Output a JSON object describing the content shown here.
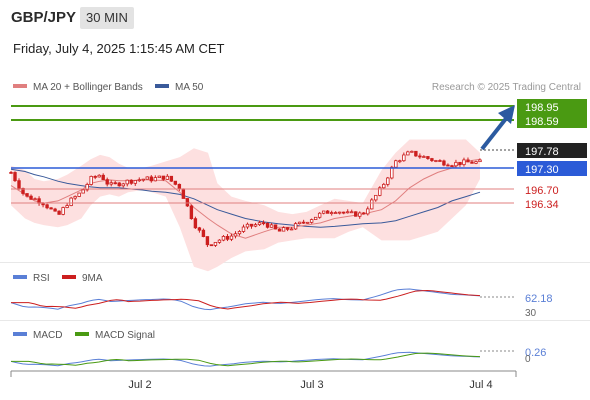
{
  "header": {
    "pair": "GBP/JPY",
    "timeframe": "30 MIN",
    "datetime": "Friday, July 4, 2025 1:15:45 AM CET"
  },
  "legend": {
    "ma20": "MA 20 + Bollinger Bands",
    "ma50": "MA 50",
    "credit": "Research © 2025 Trading Central"
  },
  "colors": {
    "candle": "#cc1f1f",
    "ma20": "#e07f7f",
    "bands_fill": "#fde0e0",
    "ma50": "#3a5a9a",
    "resistance": "#4a9a12",
    "pivot": "#2b5bd7",
    "support": "#cc1f1f",
    "arrow": "#2b5aa0",
    "rsi": "#5a7fd6",
    "rsi_ma": "#cc1f1f",
    "macd": "#5a7fd6",
    "macd_signal": "#4a9a12"
  },
  "levels": {
    "r2": {
      "label": "198.95",
      "value": 198.95
    },
    "r1": {
      "label": "198.59",
      "value": 198.59
    },
    "last": {
      "label": "197.78",
      "value": 197.78
    },
    "pivot": {
      "label": "197.30",
      "value": 197.3
    },
    "s1": {
      "label": "196.70",
      "value": 196.7
    },
    "s2": {
      "label": "196.34",
      "value": 196.34
    }
  },
  "rsi": {
    "title": "RSI",
    "ma_title": "9MA",
    "value": "62.18",
    "partial_label": "30"
  },
  "macd": {
    "title": "MACD",
    "signal_title": "MACD Signal",
    "value": "0.26",
    "partial_label": "0"
  },
  "xaxis": {
    "ticks": [
      "Jul 2",
      "Jul 3",
      "Jul 4"
    ]
  },
  "chart_data": {
    "type": "candlestick",
    "title": "GBP/JPY",
    "ylim": [
      195.6,
      199.2
    ],
    "x": [
      0,
      3,
      5,
      7,
      10,
      12,
      15,
      17,
      19,
      21,
      23,
      25,
      28,
      30,
      33,
      36,
      39,
      42,
      44,
      47,
      50,
      54,
      57,
      60,
      63,
      66,
      69,
      72,
      75,
      79,
      82,
      85,
      88,
      91,
      94,
      97,
      100
    ],
    "close": [
      197.55,
      197.0,
      196.95,
      196.85,
      196.55,
      196.85,
      197.1,
      197.4,
      197.5,
      197.25,
      197.3,
      197.35,
      197.4,
      197.4,
      197.45,
      197.2,
      196.4,
      195.9,
      196.0,
      196.1,
      196.3,
      196.4,
      196.2,
      196.3,
      196.45,
      196.6,
      196.7,
      196.6,
      196.6,
      197.2,
      197.8,
      198.0,
      197.9,
      197.8,
      197.75,
      197.78,
      197.78
    ],
    "ma20": [
      197.25,
      197.05,
      196.9,
      196.85,
      196.9,
      197.0,
      197.15,
      197.3,
      197.35,
      197.38,
      197.36,
      197.36,
      197.38,
      197.38,
      197.36,
      197.1,
      196.75,
      196.5,
      196.35,
      196.15,
      196.05,
      196.2,
      196.3,
      196.3,
      196.35,
      196.4,
      196.5,
      196.55,
      196.6,
      196.7,
      196.9,
      197.2,
      197.4,
      197.55,
      197.65,
      197.8,
      197.85
    ],
    "bb_upper": [
      197.7,
      197.6,
      197.4,
      197.35,
      197.4,
      197.5,
      197.7,
      197.85,
      197.95,
      197.9,
      197.75,
      197.65,
      197.65,
      197.7,
      197.8,
      197.9,
      198.1,
      198.0,
      197.3,
      197.0,
      196.9,
      196.8,
      196.65,
      196.6,
      196.65,
      196.8,
      196.95,
      196.9,
      196.85,
      197.6,
      198.0,
      198.3,
      198.3,
      198.3,
      198.3,
      198.3,
      198.0
    ],
    "bb_lower": [
      196.8,
      196.5,
      196.4,
      196.35,
      196.3,
      196.35,
      196.5,
      196.8,
      197.0,
      197.05,
      197.0,
      197.1,
      197.15,
      197.1,
      197.0,
      196.3,
      195.4,
      195.3,
      195.4,
      195.6,
      195.75,
      195.8,
      195.95,
      196.0,
      196.05,
      196.05,
      196.05,
      196.2,
      196.3,
      196.0,
      196.0,
      196.0,
      196.1,
      196.2,
      196.5,
      196.8,
      197.4
    ],
    "ma50": [
      197.62,
      197.57,
      197.5,
      197.45,
      197.35,
      197.3,
      197.25,
      197.22,
      197.2,
      197.2,
      197.2,
      197.18,
      197.15,
      197.12,
      197.1,
      197.05,
      196.95,
      196.8,
      196.7,
      196.6,
      196.5,
      196.42,
      196.38,
      196.35,
      196.32,
      196.3,
      196.32,
      196.35,
      196.38,
      196.4,
      196.45,
      196.55,
      196.65,
      196.75,
      196.9,
      197.0,
      197.1
    ]
  }
}
